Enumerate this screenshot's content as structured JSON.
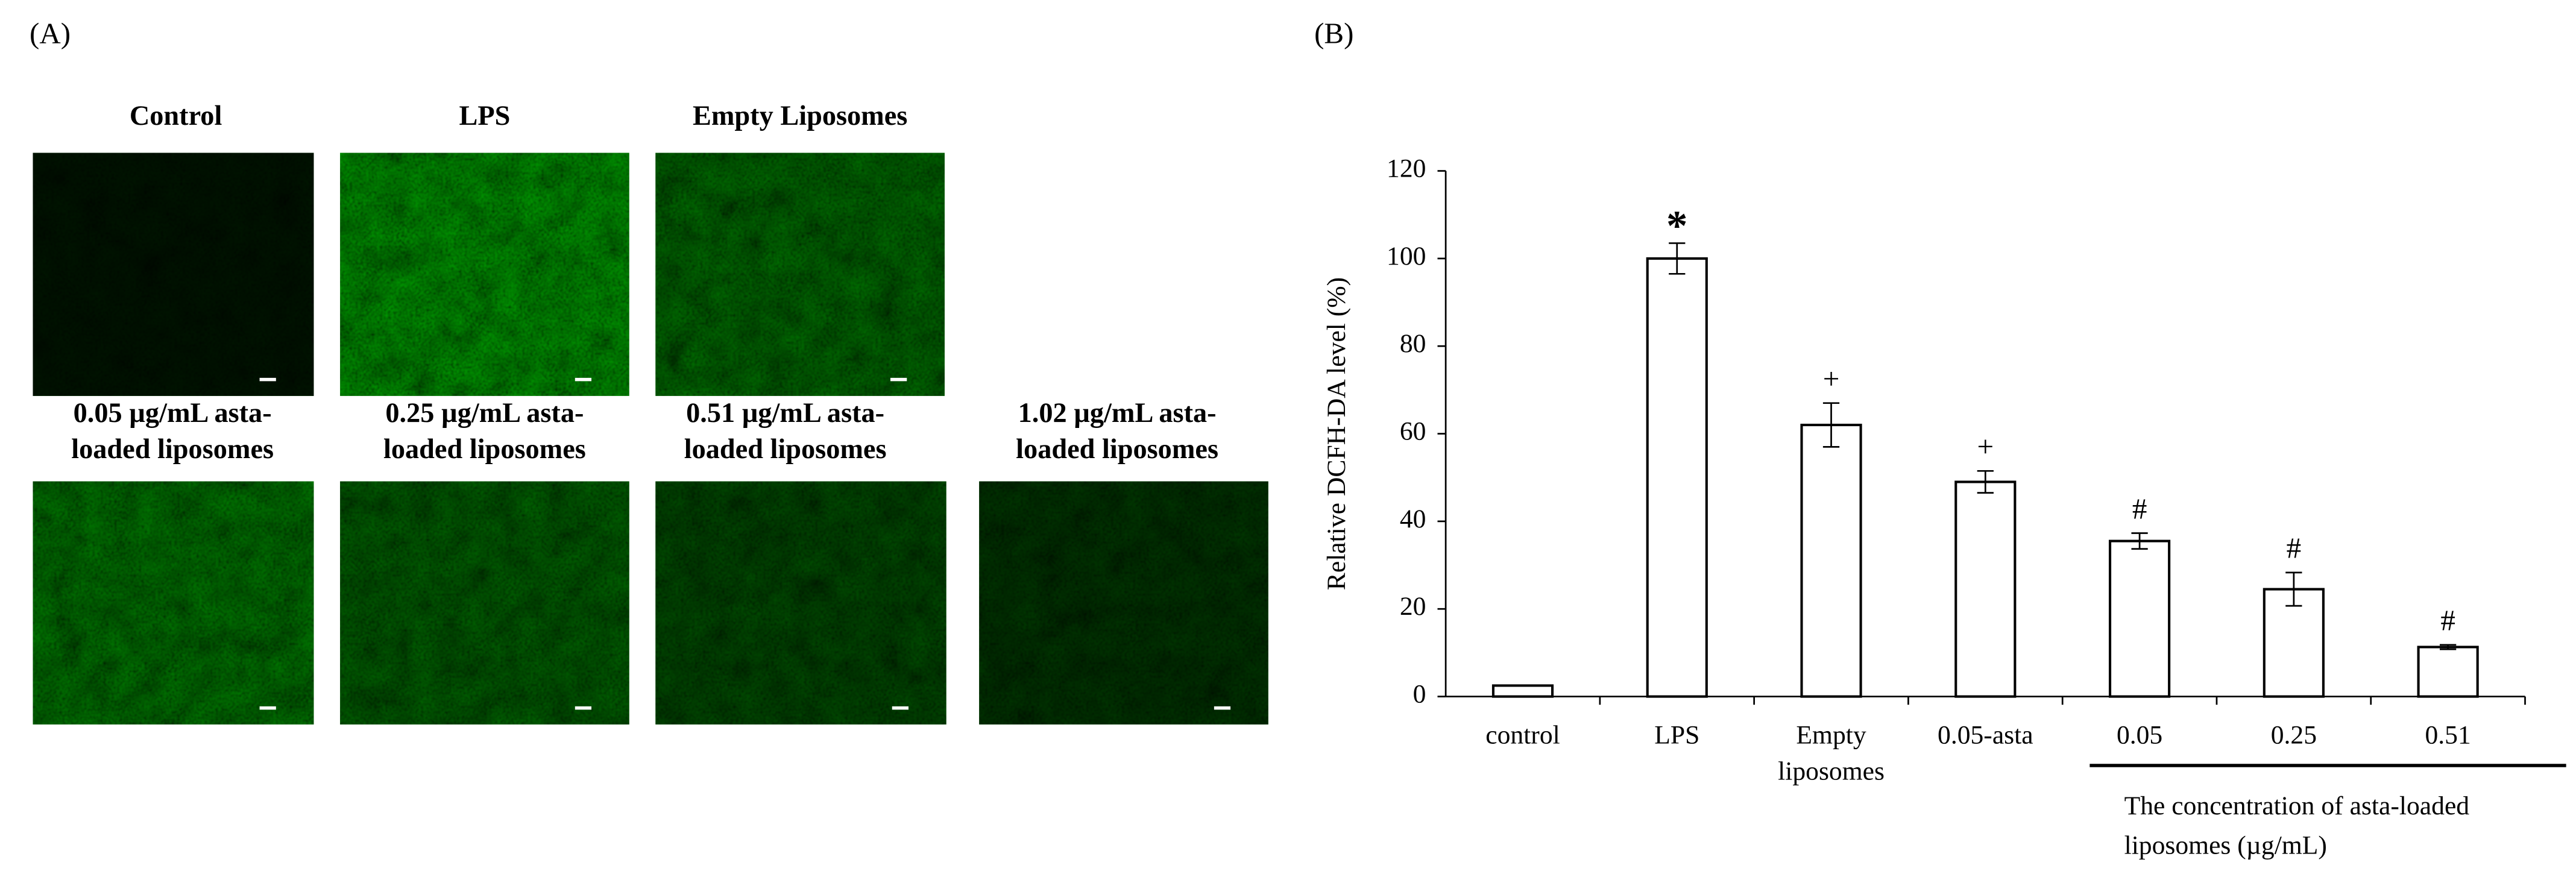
{
  "panel_a": {
    "label": "(A)",
    "images": [
      {
        "caption": [
          "Control"
        ]
      },
      {
        "caption": [
          "LPS"
        ]
      },
      {
        "caption": [
          "Empty Liposomes"
        ]
      },
      {
        "caption": [
          "0.05 µg/mL asta-",
          "loaded liposomes"
        ]
      },
      {
        "caption": [
          "0.25 µg/mL asta-",
          "loaded liposomes"
        ]
      },
      {
        "caption": [
          "0.51 µg/mL asta-",
          "loaded liposomes"
        ]
      },
      {
        "caption": [
          "1.02 µg/mL asta-",
          "loaded liposomes"
        ]
      }
    ]
  },
  "panel_b_label": "(B)",
  "chart_data": {
    "type": "bar",
    "y_label": "Relative DCFH-DA level (%)",
    "categories": [
      "control",
      "LPS",
      "Empty liposomes",
      "0.05-asta",
      "0.05",
      "0.25",
      "0.51"
    ],
    "values": [
      2.5,
      100,
      62,
      49,
      35.5,
      24.5,
      11.3
    ],
    "errors": [
      0,
      3.5,
      5,
      2.5,
      1.8,
      3.8,
      0.5
    ],
    "annotations": [
      null,
      "*",
      "+",
      "+",
      "#",
      "#",
      "#"
    ],
    "group_label": [
      "The concentration of asta-loaded",
      "liposomes (µg/mL)"
    ],
    "color": "#ffffff",
    "edge_color": "#000000",
    "ylim": [
      0,
      120
    ],
    "yticks": [
      0,
      20,
      40,
      60,
      80,
      100,
      120
    ]
  }
}
